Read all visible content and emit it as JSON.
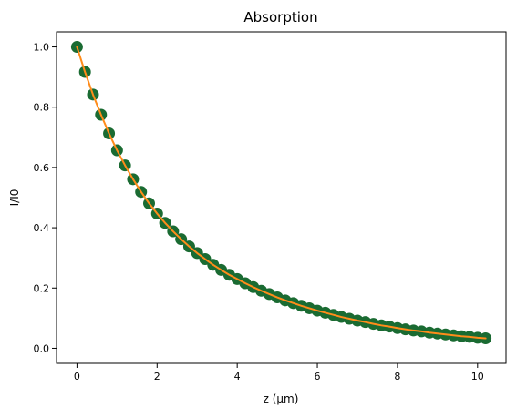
{
  "chart_data": {
    "type": "scatter",
    "title": "Absorption",
    "xlabel": "z (µm)",
    "ylabel": "I/I0",
    "xlim": [
      -0.51,
      10.71
    ],
    "ylim": [
      -0.05,
      1.05
    ],
    "grid": false,
    "x_ticks": [
      0,
      2,
      4,
      6,
      8,
      10
    ],
    "x_tick_labels": [
      "0",
      "2",
      "4",
      "6",
      "8",
      "10"
    ],
    "y_ticks": [
      0.0,
      0.2,
      0.4,
      0.6,
      0.8,
      1.0
    ],
    "y_tick_labels": [
      "0.0",
      "0.2",
      "0.4",
      "0.6",
      "0.8",
      "1.0"
    ],
    "series": [
      {
        "kind": "scatter",
        "color": "#1a6b32",
        "x": [
          0.0,
          0.2,
          0.4,
          0.6,
          0.8,
          1.0,
          1.2,
          1.4,
          1.6,
          1.8,
          2.0,
          2.2,
          2.4,
          2.6,
          2.8,
          3.0,
          3.2,
          3.4,
          3.6,
          3.8,
          4.0,
          4.2,
          4.4,
          4.6,
          4.8,
          5.0,
          5.2,
          5.4,
          5.6,
          5.8,
          6.0,
          6.2,
          6.4,
          6.6,
          6.8,
          7.0,
          7.2,
          7.4,
          7.6,
          7.8,
          8.0,
          8.2,
          8.4,
          8.6,
          8.8,
          9.0,
          9.2,
          9.4,
          9.6,
          9.8,
          10.0,
          10.2
        ],
        "y": [
          1.0,
          0.917,
          0.842,
          0.775,
          0.713,
          0.657,
          0.607,
          0.561,
          0.519,
          0.481,
          0.447,
          0.416,
          0.388,
          0.362,
          0.338,
          0.316,
          0.296,
          0.277,
          0.26,
          0.244,
          0.23,
          0.216,
          0.203,
          0.191,
          0.18,
          0.169,
          0.159,
          0.15,
          0.141,
          0.133,
          0.125,
          0.118,
          0.111,
          0.104,
          0.098,
          0.092,
          0.087,
          0.081,
          0.076,
          0.072,
          0.067,
          0.063,
          0.059,
          0.056,
          0.052,
          0.049,
          0.046,
          0.043,
          0.04,
          0.038,
          0.035,
          0.033
        ]
      },
      {
        "kind": "line",
        "color": "#ff8c1a",
        "x": [
          0.0,
          0.2,
          0.4,
          0.6,
          0.8,
          1.0,
          1.2,
          1.4,
          1.6,
          1.8,
          2.0,
          2.2,
          2.4,
          2.6,
          2.8,
          3.0,
          3.2,
          3.4,
          3.6,
          3.8,
          4.0,
          4.2,
          4.4,
          4.6,
          4.8,
          5.0,
          5.2,
          5.4,
          5.6,
          5.8,
          6.0,
          6.2,
          6.4,
          6.6,
          6.8,
          7.0,
          7.2,
          7.4,
          7.6,
          7.8,
          8.0,
          8.2,
          8.4,
          8.6,
          8.8,
          9.0,
          9.2,
          9.4,
          9.6,
          9.8,
          10.0,
          10.2
        ],
        "y": [
          1.0,
          0.917,
          0.842,
          0.775,
          0.713,
          0.657,
          0.607,
          0.561,
          0.519,
          0.481,
          0.447,
          0.416,
          0.388,
          0.362,
          0.338,
          0.316,
          0.296,
          0.277,
          0.26,
          0.244,
          0.23,
          0.216,
          0.203,
          0.191,
          0.18,
          0.169,
          0.159,
          0.15,
          0.141,
          0.133,
          0.125,
          0.118,
          0.111,
          0.104,
          0.098,
          0.092,
          0.087,
          0.081,
          0.076,
          0.072,
          0.067,
          0.063,
          0.059,
          0.056,
          0.052,
          0.049,
          0.046,
          0.043,
          0.04,
          0.038,
          0.035,
          0.033
        ]
      }
    ]
  }
}
